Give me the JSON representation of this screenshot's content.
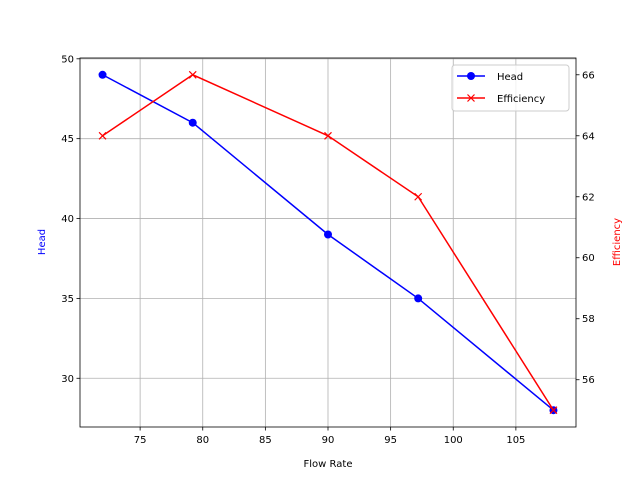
{
  "chart_data": {
    "type": "line",
    "title": "",
    "xlabel": "Flow Rate",
    "ylabel_left": "Head",
    "ylabel_right": "Efficiency",
    "x": [
      72,
      79.2,
      90,
      97.2,
      108
    ],
    "xlim": [
      70.2,
      109.8
    ],
    "ylim_left": [
      26.95,
      50.05
    ],
    "ylim_right": [
      54.45,
      66.55
    ],
    "xticks": [
      75,
      80,
      85,
      90,
      95,
      100,
      105
    ],
    "yticks_left": [
      30,
      35,
      40,
      45,
      50
    ],
    "yticks_right": [
      56,
      58,
      60,
      62,
      64,
      66
    ],
    "grid": true,
    "legend_position": "top-right",
    "series": [
      {
        "name": "Head",
        "axis": "left",
        "color": "#0000ff",
        "marker": "circle",
        "values": [
          49,
          46,
          39,
          35,
          28
        ]
      },
      {
        "name": "Efficiency",
        "axis": "right",
        "color": "#ff0000",
        "marker": "x",
        "values": [
          64,
          66,
          64,
          62,
          55
        ]
      }
    ],
    "colors": {
      "left_label": "#0000ff",
      "right_label": "#ff0000",
      "grid": "#b0b0b0"
    }
  }
}
